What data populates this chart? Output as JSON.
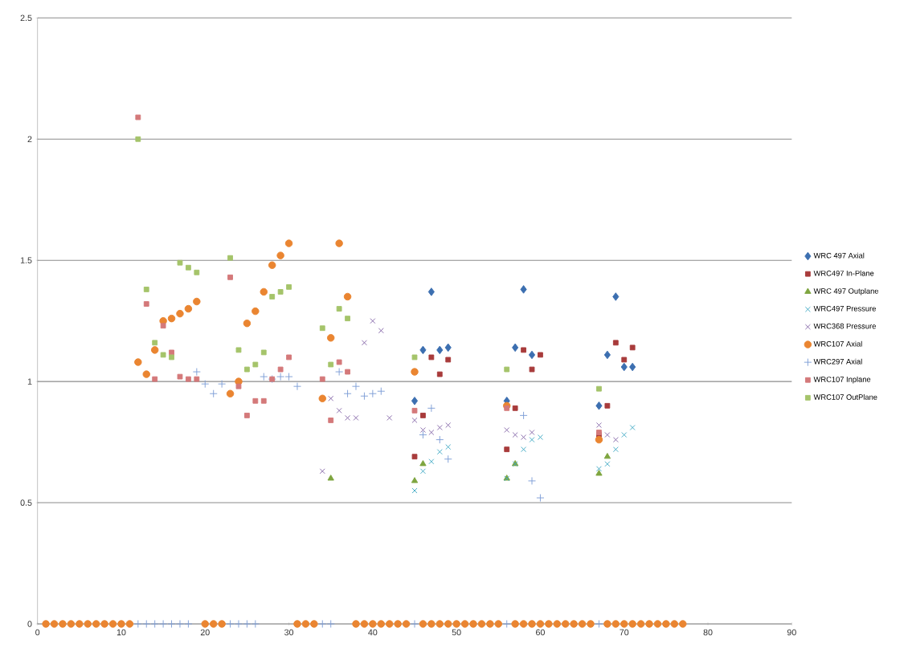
{
  "chart_data": {
    "type": "scatter",
    "x": [
      1,
      2,
      3,
      4,
      5,
      6,
      7,
      8,
      9,
      10,
      11,
      12,
      13,
      14,
      15,
      16,
      17,
      18,
      19,
      20,
      21,
      22,
      23,
      24,
      25,
      26,
      27,
      28,
      29,
      30,
      31,
      32,
      33,
      34,
      35,
      36,
      37,
      38,
      39,
      40,
      41,
      42,
      43,
      44,
      45,
      46,
      47,
      48,
      49,
      50,
      51,
      52,
      53,
      54,
      55,
      56,
      57,
      58,
      59,
      60,
      61,
      62,
      63,
      64,
      65,
      66,
      67,
      68,
      69,
      70,
      71,
      72,
      73,
      74,
      75,
      76,
      77
    ],
    "series": [
      {
        "name": "WRC 497 Axial",
        "color": "#3c6fb0",
        "marker": "diamond",
        "x": [
          45,
          46,
          47,
          48,
          49,
          56,
          57,
          58,
          59,
          67,
          68,
          69,
          70,
          71
        ],
        "values": [
          0.92,
          1.13,
          1.37,
          1.13,
          1.14,
          0.92,
          1.14,
          1.38,
          1.11,
          0.9,
          1.11,
          1.35,
          1.06,
          1.06
        ]
      },
      {
        "name": "WRC497 In-Plane",
        "color": "#a83b3b",
        "marker": "square",
        "x": [
          45,
          46,
          47,
          48,
          49,
          56,
          57,
          58,
          59,
          60,
          67,
          68,
          69,
          70,
          71
        ],
        "values": [
          0.69,
          0.86,
          1.1,
          1.03,
          1.09,
          0.72,
          0.89,
          1.13,
          1.05,
          1.11,
          0.78,
          0.9,
          1.16,
          1.09,
          1.14
        ]
      },
      {
        "name": "WRC 497 Outplane",
        "color": "#7ea53f",
        "marker": "triangle",
        "x": [
          35,
          45,
          46,
          56,
          57,
          67,
          68
        ],
        "values": [
          0.6,
          0.59,
          0.66,
          0.6,
          0.66,
          0.62,
          0.69
        ]
      },
      {
        "name": "WRC497 Pressure",
        "color": "#3fa9c4",
        "marker": "cross",
        "x": [
          45,
          46,
          47,
          48,
          49,
          56,
          57,
          58,
          59,
          60,
          67,
          68,
          69,
          70,
          71
        ],
        "values": [
          0.55,
          0.63,
          0.67,
          0.71,
          0.73,
          0.6,
          0.66,
          0.72,
          0.76,
          0.77,
          0.64,
          0.66,
          0.72,
          0.78,
          0.81
        ]
      },
      {
        "name": "WRC368 Pressure",
        "color": "#8466a8",
        "marker": "cross",
        "x": [
          34,
          35,
          36,
          37,
          38,
          39,
          40,
          41,
          42,
          45,
          46,
          47,
          48,
          49,
          56,
          57,
          58,
          59,
          67,
          68,
          69
        ],
        "values": [
          0.63,
          0.93,
          0.88,
          0.85,
          0.85,
          1.16,
          1.25,
          1.21,
          0.85,
          0.84,
          0.8,
          0.79,
          0.81,
          0.82,
          0.8,
          0.78,
          0.77,
          0.79,
          0.82,
          0.78,
          0.76
        ]
      },
      {
        "name": "WRC107 Axial",
        "color": "#ea8531",
        "marker": "circle",
        "values": [
          0,
          0,
          0,
          0,
          0,
          0,
          0,
          0,
          0,
          0,
          0,
          1.08,
          1.03,
          1.13,
          1.25,
          1.26,
          1.28,
          1.3,
          1.33,
          0,
          0,
          0,
          0.95,
          1.0,
          1.24,
          1.29,
          1.37,
          1.48,
          1.52,
          1.57,
          0,
          0,
          0,
          0.93,
          1.18,
          1.57,
          1.35,
          0,
          0,
          0,
          0,
          0,
          0,
          0,
          1.04,
          0,
          0,
          0,
          0,
          0,
          0,
          0,
          0,
          0,
          0,
          0.9,
          0,
          0,
          0,
          0,
          0,
          0,
          0,
          0,
          0,
          0,
          0.76,
          0,
          0,
          0,
          0,
          0,
          0,
          0,
          0,
          0,
          0
        ]
      },
      {
        "name": "WRC297 Axial",
        "color": "#7d9dd6",
        "marker": "plus",
        "x": [
          12,
          13,
          14,
          15,
          16,
          17,
          18,
          19,
          20,
          21,
          22,
          23,
          24,
          25,
          26,
          27,
          28,
          29,
          30,
          31,
          34,
          35,
          36,
          37,
          38,
          39,
          40,
          41,
          45,
          46,
          47,
          48,
          49,
          56,
          58,
          59,
          60,
          67
        ],
        "values": [
          0,
          0,
          0,
          0,
          0,
          0,
          0,
          1.04,
          0.99,
          0.95,
          0.99,
          0,
          0,
          0,
          0,
          1.02,
          1.01,
          1.02,
          1.02,
          0.98,
          0,
          0,
          1.04,
          0.95,
          0.98,
          0.94,
          0.95,
          0.96,
          0,
          0.78,
          0.89,
          0.76,
          0.68,
          0,
          0.86,
          0.59,
          0.52,
          0
        ]
      },
      {
        "name": "WRC107 Inplane",
        "color": "#d4797a",
        "marker": "square",
        "x": [
          12,
          13,
          14,
          15,
          16,
          17,
          18,
          19,
          23,
          24,
          25,
          26,
          27,
          28,
          29,
          30,
          34,
          35,
          36,
          37,
          45,
          56,
          67
        ],
        "values": [
          2.09,
          1.32,
          1.01,
          1.23,
          1.12,
          1.02,
          1.01,
          1.01,
          1.43,
          0.98,
          0.86,
          0.92,
          0.92,
          1.01,
          1.05,
          1.1,
          1.01,
          0.84,
          1.08,
          1.04,
          0.88,
          0.89,
          0.79
        ]
      },
      {
        "name": "WRC107 OutPlane",
        "color": "#a5c46a",
        "marker": "square",
        "x": [
          12,
          13,
          14,
          15,
          16,
          17,
          18,
          19,
          23,
          24,
          25,
          26,
          27,
          28,
          29,
          30,
          34,
          35,
          36,
          37,
          45,
          56,
          67
        ],
        "values": [
          2.0,
          1.38,
          1.16,
          1.11,
          1.1,
          1.49,
          1.47,
          1.45,
          1.51,
          1.13,
          1.05,
          1.07,
          1.12,
          1.35,
          1.37,
          1.39,
          1.22,
          1.07,
          1.3,
          1.26,
          1.1,
          1.05,
          0.97
        ]
      }
    ],
    "xlim": [
      0,
      90
    ],
    "xticks": [
      0,
      10,
      20,
      30,
      40,
      50,
      60,
      70,
      80,
      90
    ],
    "ylim": [
      0,
      2.5
    ],
    "yticks": [
      0,
      0.5,
      1,
      1.5,
      2,
      2.5
    ],
    "grid": "y",
    "legend": "right"
  }
}
